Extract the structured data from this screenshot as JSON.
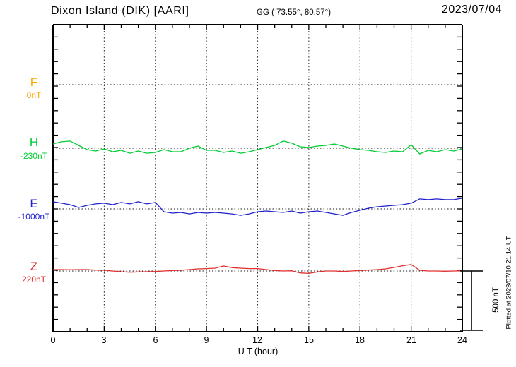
{
  "header": {
    "station_title": "Dixon Island (DIK)  [AARI]",
    "coordinates": "GG ( 73.55°,  80.57°)",
    "date": "2023/07/04"
  },
  "components": [
    {
      "id": "F",
      "label": "F",
      "baseline_label": "0nT",
      "color": "#FFA500"
    },
    {
      "id": "H",
      "label": "H",
      "baseline_label": "-230nT",
      "color": "#00CC33"
    },
    {
      "id": "E",
      "label": "E",
      "baseline_label": "-1000nT",
      "color": "#2222CC"
    },
    {
      "id": "Z",
      "label": "Z",
      "baseline_label": "220nT",
      "color": "#E03030"
    }
  ],
  "x_axis": {
    "label": "U T (hour)",
    "ticks": [
      "0",
      "3",
      "6",
      "9",
      "12",
      "15",
      "18",
      "21",
      "24"
    ]
  },
  "scale_bar": {
    "label": "500 nT",
    "span_nT": 500
  },
  "plotted_at": "Plotted at 2023/07/10 21:14 UT",
  "chart_data": {
    "type": "line",
    "title": "Dixon Island (DIK) [AARI] magnetogram, 2023/07/04",
    "xlabel": "U T (hour)",
    "x_range_hours": [
      0,
      24
    ],
    "x_step_hours": 0.5,
    "grid": "dotted vertical lines every 3 hours; dotted horizontal baseline per component",
    "legend_position": "left margin component labels",
    "scale_note": "offsets_nT are deviations from each component baseline; scale bar = 500 nT",
    "series": [
      {
        "name": "F",
        "baseline_nT": 0,
        "color": "#FFA500",
        "offsets_nT": [],
        "note": "no visible trace (flat / not plotted), only dotted baseline"
      },
      {
        "name": "H",
        "baseline_nT": -230,
        "color": "#00CC33",
        "offsets_nT": [
          36,
          54,
          60,
          24,
          -12,
          -24,
          -6,
          -30,
          -18,
          -42,
          -24,
          -42,
          -36,
          -12,
          -30,
          -30,
          0,
          18,
          -18,
          -18,
          -36,
          -24,
          -42,
          -30,
          -12,
          6,
          24,
          60,
          42,
          12,
          6,
          18,
          24,
          36,
          18,
          0,
          -12,
          -18,
          -30,
          -36,
          -24,
          -30,
          30,
          -48,
          -18,
          -30,
          -12,
          -24,
          -6
        ]
      },
      {
        "name": "E",
        "baseline_nT": -1000,
        "color": "#2222CC",
        "offsets_nT": [
          60,
          48,
          36,
          12,
          30,
          42,
          48,
          36,
          54,
          42,
          60,
          42,
          54,
          -24,
          -36,
          -30,
          -42,
          -30,
          -36,
          -30,
          -36,
          -42,
          -54,
          -42,
          -24,
          -18,
          -24,
          -30,
          -18,
          -36,
          -24,
          -18,
          -30,
          -42,
          -54,
          -30,
          -12,
          6,
          18,
          24,
          30,
          36,
          48,
          84,
          78,
          84,
          78,
          78,
          90
        ]
      },
      {
        "name": "Z",
        "baseline_nT": 220,
        "color": "#E03030",
        "offsets_nT": [
          12,
          12,
          10,
          12,
          12,
          8,
          6,
          0,
          -6,
          -10,
          -8,
          -6,
          -4,
          0,
          4,
          6,
          12,
          18,
          20,
          24,
          42,
          28,
          24,
          20,
          20,
          12,
          4,
          0,
          2,
          -16,
          -20,
          -8,
          0,
          0,
          -4,
          0,
          4,
          8,
          12,
          18,
          30,
          44,
          55,
          6,
          0,
          0,
          -2,
          0,
          2
        ]
      }
    ]
  }
}
